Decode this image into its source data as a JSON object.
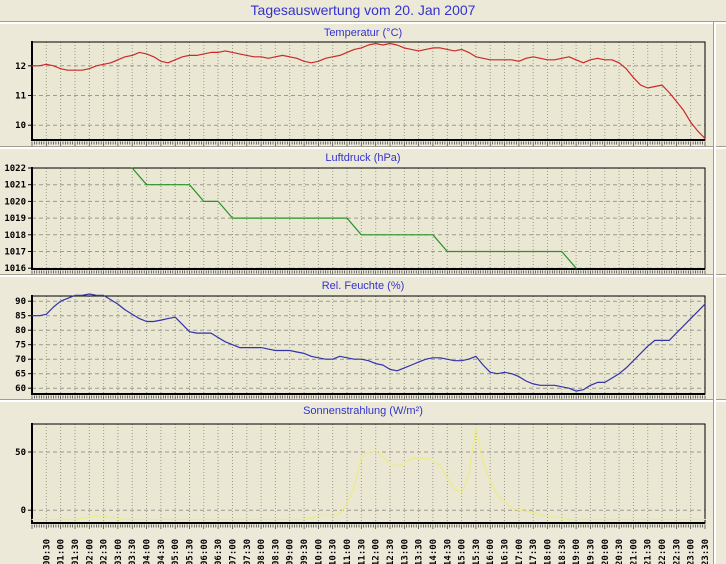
{
  "header": {
    "title": "Tagesauswertung vom 20. Jan 2007"
  },
  "colors": {
    "page_bg": "#ece9d8",
    "plot_bg": "#eae7d3",
    "grid": "#9a9a92",
    "frame": "#000000",
    "title_text": "#3333cc",
    "axis_text": "#000000"
  },
  "x_axis": {
    "start_minutes": 30,
    "step_minutes": 30,
    "total_minutes": 1410,
    "labels": [
      "00:30",
      "01:00",
      "01:30",
      "02:00",
      "02:30",
      "03:00",
      "03:30",
      "04:00",
      "04:30",
      "05:00",
      "05:30",
      "06:00",
      "06:30",
      "07:00",
      "07:30",
      "08:00",
      "08:30",
      "09:00",
      "09:30",
      "10:00",
      "10:30",
      "11:00",
      "11:30",
      "12:00",
      "12:30",
      "13:00",
      "13:30",
      "14:00",
      "14:30",
      "15:00",
      "15:30",
      "16:00",
      "16:30",
      "17:00",
      "17:30",
      "18:00",
      "18:30",
      "19:00",
      "19:30",
      "20:00",
      "20:30",
      "21:00",
      "21:30",
      "22:00",
      "22:30",
      "23:00",
      "23:30"
    ]
  },
  "chart_data": [
    {
      "type": "line",
      "title": "Temperatur (°C)",
      "color": "#cc2929",
      "ylim": [
        9.5,
        12.8
      ],
      "yticks": [
        10,
        11,
        12
      ],
      "x_start_min": 0,
      "x_step_min": 15,
      "values": [
        12.0,
        12.0,
        12.05,
        12.0,
        11.9,
        11.85,
        11.85,
        11.85,
        11.9,
        12.0,
        12.05,
        12.1,
        12.2,
        12.3,
        12.35,
        12.45,
        12.4,
        12.3,
        12.15,
        12.1,
        12.2,
        12.3,
        12.35,
        12.35,
        12.4,
        12.45,
        12.45,
        12.5,
        12.45,
        12.4,
        12.35,
        12.3,
        12.3,
        12.25,
        12.3,
        12.35,
        12.3,
        12.25,
        12.15,
        12.1,
        12.15,
        12.25,
        12.3,
        12.35,
        12.45,
        12.55,
        12.6,
        12.7,
        12.75,
        12.7,
        12.75,
        12.7,
        12.6,
        12.55,
        12.5,
        12.55,
        12.6,
        12.6,
        12.55,
        12.5,
        12.55,
        12.45,
        12.3,
        12.25,
        12.2,
        12.2,
        12.2,
        12.2,
        12.15,
        12.25,
        12.3,
        12.25,
        12.2,
        12.2,
        12.25,
        12.3,
        12.2,
        12.1,
        12.2,
        12.25,
        12.2,
        12.2,
        12.1,
        11.9,
        11.6,
        11.35,
        11.25,
        11.3,
        11.35,
        11.1,
        10.8,
        10.5,
        10.1,
        9.8,
        9.55
      ]
    },
    {
      "type": "line",
      "title": "Luftdruck (hPa)",
      "color": "#289328",
      "ylim": [
        1015.95,
        1022
      ],
      "yticks": [
        1016,
        1017,
        1018,
        1019,
        1020,
        1021,
        1022
      ],
      "x_start_min": 210,
      "x_step_min": 30,
      "values": [
        1022,
        1021,
        1021,
        1021,
        1021,
        1020,
        1020,
        1019,
        1019,
        1019,
        1019,
        1019,
        1019,
        1019,
        1019,
        1019,
        1018,
        1018,
        1018,
        1018,
        1018,
        1018,
        1017,
        1017,
        1017,
        1017,
        1017,
        1017,
        1017,
        1017,
        1017,
        1016
      ]
    },
    {
      "type": "line",
      "title": "Rel. Feuchte (%)",
      "color": "#3333aa",
      "ylim": [
        58,
        91.8
      ],
      "yticks": [
        60,
        65,
        70,
        75,
        80,
        85,
        90
      ],
      "x_start_min": 0,
      "x_step_min": 15,
      "values": [
        85,
        85,
        85.5,
        88,
        90,
        91,
        92,
        92,
        92.5,
        92,
        92,
        90.5,
        89,
        87,
        85.5,
        84,
        83,
        83,
        83.5,
        84,
        84.5,
        82,
        79.5,
        79,
        79,
        79,
        77.5,
        76,
        75,
        74,
        74,
        74,
        74,
        73.5,
        73,
        73,
        73,
        72.5,
        72,
        71,
        70.5,
        70,
        70,
        71,
        70.5,
        70,
        70,
        69.5,
        68.5,
        68,
        66.5,
        66,
        67,
        68,
        69,
        70,
        70.5,
        70.5,
        70,
        69.5,
        69.5,
        70,
        71,
        68,
        65.5,
        65,
        65.5,
        65,
        64,
        62.5,
        61.5,
        61,
        61,
        61,
        60.5,
        60,
        59,
        59.5,
        61,
        62,
        62,
        63.5,
        65,
        67,
        69.5,
        72,
        74.5,
        76.5,
        76.5,
        76.5,
        79,
        81.5,
        84,
        86.5,
        89
      ]
    },
    {
      "type": "line",
      "title": "Sonnenstrahlung (W/m²)",
      "color": "#ecec85",
      "ylim": [
        -11,
        74
      ],
      "yticks": [
        0,
        50
      ],
      "x_start_min": 0,
      "x_step_min": 15,
      "values": [
        -8,
        -8,
        -8,
        -8,
        -8,
        -8,
        -8,
        -7,
        -6,
        -5,
        -5,
        -6,
        -7,
        -8,
        -8,
        -8,
        -8,
        -8,
        -8,
        -8,
        -8,
        -8,
        -8,
        -8,
        -8,
        -8,
        -8,
        -8,
        -8,
        -8,
        -8,
        -8,
        -8,
        -8,
        -8,
        -8,
        -8,
        -8,
        -8,
        -7,
        -5,
        -4,
        -5,
        -3,
        5,
        20,
        45,
        50,
        51,
        46,
        40,
        38,
        40,
        44,
        45,
        44,
        43,
        38,
        28,
        18,
        15,
        30,
        71,
        42,
        25,
        13,
        7,
        2,
        0,
        -1,
        -2,
        -4,
        -5,
        -6,
        -7,
        -8,
        -8,
        -8,
        -8,
        -8,
        -8,
        -8,
        -8,
        -8,
        -8,
        -8,
        -8,
        -8,
        -8,
        -8,
        -8,
        -8,
        -8,
        -8,
        -8
      ]
    }
  ]
}
